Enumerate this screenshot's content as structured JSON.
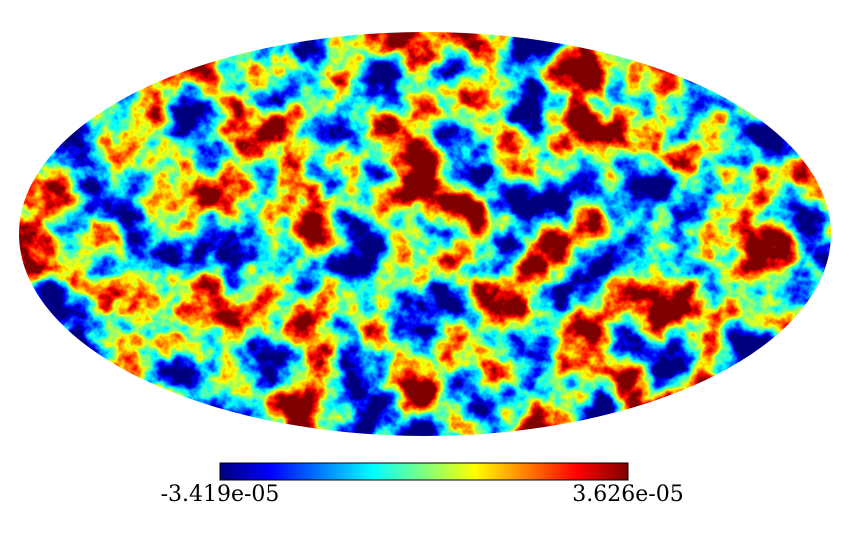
{
  "chart_data": {
    "type": "mollweide",
    "colormap": "jet",
    "clim": [
      -3.419e-05,
      3.626e-05
    ],
    "cticks": [
      {
        "value": -3.419e-05,
        "label": "-3.419e-05"
      },
      {
        "value": 3.626e-05,
        "label": "3.626e-05"
      }
    ]
  }
}
